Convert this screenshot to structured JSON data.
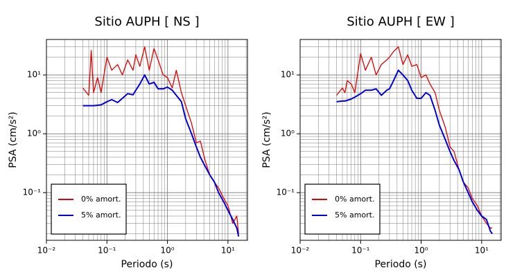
{
  "chart_data": [
    {
      "type": "line",
      "title": "Sitio AUPH [ NS ]",
      "xlabel": "Periodo (s)",
      "ylabel": "PSA (cm/s²)",
      "x": [
        0.04,
        0.05,
        0.055,
        0.06,
        0.07,
        0.08,
        0.1,
        0.12,
        0.15,
        0.18,
        0.22,
        0.27,
        0.3,
        0.35,
        0.42,
        0.5,
        0.6,
        0.7,
        0.85,
        1.0,
        1.2,
        1.4,
        1.7,
        2.0,
        2.5,
        3.0,
        3.5,
        4.2,
        5,
        6,
        7,
        8.5,
        10,
        12,
        14,
        15
      ],
      "series": [
        {
          "name": "0% amort.",
          "color": "#e00000",
          "values": [
            6,
            4.5,
            26,
            5,
            9,
            5,
            20,
            12,
            15,
            10,
            18,
            12,
            22,
            14,
            30,
            12,
            28,
            18,
            10,
            9,
            6,
            12,
            5,
            3,
            1.5,
            0.7,
            0.75,
            0.35,
            0.2,
            0.15,
            0.12,
            0.08,
            0.06,
            0.03,
            0.04,
            0.02
          ]
        },
        {
          "name": "5% amort.",
          "color": "#0000dd",
          "values": [
            3.0,
            3.0,
            3.0,
            3.0,
            3.05,
            3.1,
            3.5,
            3.8,
            3.4,
            4.0,
            4.8,
            4.6,
            5.5,
            7,
            10,
            7,
            7.5,
            5.8,
            5.8,
            6.2,
            5.5,
            4.5,
            3.5,
            1.8,
            1.0,
            0.6,
            0.4,
            0.28,
            0.2,
            0.15,
            0.1,
            0.07,
            0.05,
            0.035,
            0.025,
            0.018
          ]
        }
      ],
      "xlim": [
        0.01,
        21
      ],
      "ylim": [
        0.0155,
        40
      ],
      "xscale": "log",
      "yscale": "log",
      "xticks": [
        {
          "value": 0.01,
          "label": "10⁻²"
        },
        {
          "value": 0.1,
          "label": "10⁻¹"
        },
        {
          "value": 1,
          "label": "10⁰"
        },
        {
          "value": 10,
          "label": "10¹"
        }
      ],
      "yticks": [
        {
          "value": 0.1,
          "label": "10⁻¹"
        },
        {
          "value": 1,
          "label": "10⁰"
        },
        {
          "value": 10,
          "label": "10¹"
        }
      ],
      "grid": true,
      "legend": "lower left"
    },
    {
      "type": "line",
      "title": "Sitio AUPH [ EW ]",
      "xlabel": "Periodo (s)",
      "ylabel": "PSA (cm/s²)",
      "x": [
        0.04,
        0.05,
        0.055,
        0.06,
        0.07,
        0.08,
        0.1,
        0.12,
        0.15,
        0.18,
        0.22,
        0.27,
        0.3,
        0.35,
        0.42,
        0.5,
        0.6,
        0.7,
        0.85,
        1.0,
        1.2,
        1.4,
        1.7,
        2.0,
        2.5,
        3.0,
        3.5,
        4.2,
        5,
        6,
        7,
        8.5,
        10,
        12,
        14,
        15
      ],
      "series": [
        {
          "name": "0% amort.",
          "color": "#e00000",
          "values": [
            4.5,
            6,
            5,
            8,
            7,
            5,
            23,
            12,
            20,
            10,
            15,
            18,
            20,
            25,
            30,
            15,
            22,
            14,
            15,
            9,
            10,
            7,
            5,
            2.5,
            1.3,
            0.6,
            0.5,
            0.25,
            0.15,
            0.12,
            0.08,
            0.06,
            0.04,
            0.03,
            0.025,
            0.025
          ]
        },
        {
          "name": "5% amort.",
          "color": "#0000dd",
          "values": [
            3.5,
            3.6,
            3.6,
            3.7,
            3.9,
            4.2,
            4.8,
            5.5,
            5.5,
            5.8,
            4.5,
            5.5,
            5.8,
            8,
            12,
            10,
            8,
            5.5,
            4,
            4.0,
            5,
            4.5,
            2.5,
            1.4,
            0.8,
            0.5,
            0.35,
            0.25,
            0.15,
            0.1,
            0.07,
            0.05,
            0.04,
            0.035,
            0.022,
            0.02
          ]
        }
      ],
      "xlim": [
        0.01,
        21
      ],
      "ylim": [
        0.0155,
        40
      ],
      "xscale": "log",
      "yscale": "log",
      "xticks": [
        {
          "value": 0.01,
          "label": "10⁻²"
        },
        {
          "value": 0.1,
          "label": "10⁻¹"
        },
        {
          "value": 1,
          "label": "10⁰"
        },
        {
          "value": 10,
          "label": "10¹"
        }
      ],
      "yticks": [
        {
          "value": 0.1,
          "label": "10⁻¹"
        },
        {
          "value": 1,
          "label": "10⁰"
        },
        {
          "value": 10,
          "label": "10¹"
        }
      ],
      "grid": true,
      "legend": "lower left"
    }
  ]
}
